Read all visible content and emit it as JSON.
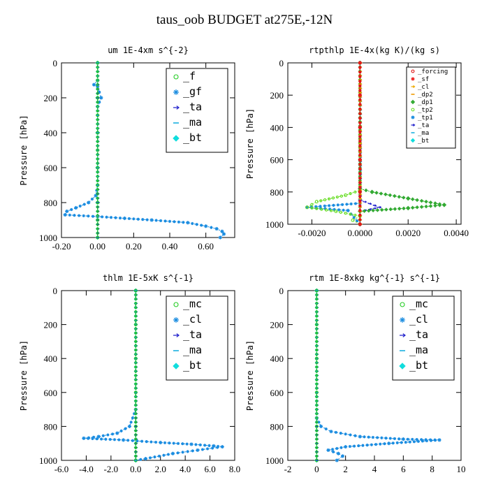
{
  "page": {
    "title": "taus_oob  BUDGET at275E,-12N"
  },
  "chart_data": [
    {
      "id": "um",
      "type": "line",
      "title": "um  1E-4xm s^{-2}",
      "ylabel": "Pressure [hPa]",
      "xlim": [
        -0.2,
        0.76
      ],
      "ylim": [
        1000,
        0
      ],
      "xticks": [
        -0.2,
        0.0,
        0.2,
        0.4,
        0.6
      ],
      "xticklabels": [
        "-0.20",
        "0.00",
        "0.20",
        "0.40",
        "0.60"
      ],
      "yticks": [
        0,
        200,
        400,
        600,
        800,
        1000
      ],
      "yticklabels": [
        "0",
        "200",
        "400",
        "600",
        "800",
        "1000"
      ],
      "legend_position": "top-right",
      "legend_size": "large",
      "series": [
        {
          "name": "_f",
          "color": "#22cc22",
          "marker": "circle",
          "points": [
            [
              0.0,
              0
            ],
            [
              0.0,
              100
            ],
            [
              0.0,
              200
            ],
            [
              0.0,
              300
            ],
            [
              0.0,
              400
            ],
            [
              0.0,
              500
            ],
            [
              0.0,
              600
            ],
            [
              0.0,
              700
            ],
            [
              0.0,
              800
            ],
            [
              0.0,
              900
            ],
            [
              0.0,
              1000
            ]
          ]
        },
        {
          "name": "_gf",
          "color": "#1a8ce0",
          "marker": "star",
          "points": [
            [
              0.0,
              0
            ],
            [
              0.0,
              100
            ],
            [
              -0.02,
              125
            ],
            [
              0.0,
              135
            ],
            [
              0.02,
              200
            ],
            [
              0.0,
              250
            ],
            [
              0.0,
              400
            ],
            [
              0.0,
              600
            ],
            [
              0.0,
              700
            ],
            [
              -0.01,
              760
            ],
            [
              -0.05,
              800
            ],
            [
              -0.12,
              830
            ],
            [
              -0.17,
              850
            ],
            [
              -0.18,
              870
            ],
            [
              0.0,
              880
            ],
            [
              0.15,
              890
            ],
            [
              0.3,
              900
            ],
            [
              0.5,
              915
            ],
            [
              0.6,
              935
            ],
            [
              0.66,
              950
            ],
            [
              0.69,
              965
            ],
            [
              0.7,
              980
            ],
            [
              0.68,
              1000
            ]
          ]
        },
        {
          "name": "_ta",
          "color": "#2222cc",
          "marker": "arrow",
          "points": [
            [
              0.0,
              0
            ],
            [
              0.0,
              200
            ],
            [
              0.0,
              400
            ],
            [
              0.0,
              600
            ],
            [
              0.0,
              800
            ],
            [
              0.0,
              1000
            ]
          ]
        },
        {
          "name": "_ma",
          "color": "#1ab0e0",
          "marker": "dash",
          "points": [
            [
              0.0,
              0
            ],
            [
              0.0,
              200
            ],
            [
              0.0,
              400
            ],
            [
              0.0,
              600
            ],
            [
              0.0,
              800
            ],
            [
              0.0,
              1000
            ]
          ]
        },
        {
          "name": "_bt",
          "color": "#11dddd",
          "marker": "diamond",
          "points": [
            [
              0.0,
              0
            ],
            [
              0.0,
              200
            ],
            [
              0.0,
              400
            ],
            [
              0.0,
              600
            ],
            [
              0.0,
              800
            ],
            [
              0.0,
              1000
            ]
          ]
        }
      ]
    },
    {
      "id": "rtpthlp",
      "type": "line",
      "title": "rtpthlp  1E-4x(kg K)/(kg s)",
      "ylabel": "Pressure [hPa]",
      "xlim": [
        -0.003,
        0.0042
      ],
      "ylim": [
        1000,
        0
      ],
      "xticks": [
        -0.002,
        0.0,
        0.002,
        0.004
      ],
      "xticklabels": [
        "-0.0020",
        "0.0000",
        "0.0020",
        "0.0040"
      ],
      "yticks": [
        0,
        200,
        400,
        600,
        800,
        1000
      ],
      "yticklabels": [
        "0",
        "200",
        "400",
        "600",
        "800",
        "1000"
      ],
      "legend_position": "top-right",
      "legend_size": "small",
      "series": [
        {
          "name": "_forcing",
          "color": "#dd1111",
          "marker": "circle",
          "points": [
            [
              0.0,
              0
            ],
            [
              0.0,
              200
            ],
            [
              0.0,
              400
            ],
            [
              0.0,
              600
            ],
            [
              0.0,
              800
            ],
            [
              0.0,
              1000
            ]
          ]
        },
        {
          "name": "_sf",
          "color": "#ee2222",
          "marker": "star",
          "points": [
            [
              0.0,
              0
            ],
            [
              0.0,
              200
            ],
            [
              0.0,
              400
            ],
            [
              0.0,
              600
            ],
            [
              0.0,
              800
            ],
            [
              0.0,
              1000
            ]
          ]
        },
        {
          "name": "_cl",
          "color": "#eeaa00",
          "marker": "arrow",
          "points": [
            [
              0.0,
              0
            ],
            [
              0.0,
              1000
            ]
          ]
        },
        {
          "name": "_dp2",
          "color": "#ee9900",
          "marker": "dash",
          "points": [
            [
              0.0,
              0
            ],
            [
              0.0,
              1000
            ]
          ]
        },
        {
          "name": "_dp1",
          "color": "#33aa33",
          "marker": "diamond",
          "points": [
            [
              0.0,
              0
            ],
            [
              0.0,
              780
            ],
            [
              0.0005,
              800
            ],
            [
              0.002,
              840
            ],
            [
              0.0035,
              880
            ],
            [
              0.002,
              900
            ],
            [
              0.0,
              920
            ],
            [
              0.0,
              1000
            ]
          ]
        },
        {
          "name": "_tp2",
          "color": "#66dd22",
          "marker": "circle",
          "points": [
            [
              0.0,
              0
            ],
            [
              0.0,
              790
            ],
            [
              -0.0006,
              820
            ],
            [
              -0.0018,
              860
            ],
            [
              -0.0022,
              895
            ],
            [
              -0.001,
              920
            ],
            [
              0.0,
              950
            ],
            [
              -0.0003,
              975
            ],
            [
              0.0,
              1000
            ]
          ]
        },
        {
          "name": "_tp1",
          "color": "#1a8ce0",
          "marker": "star",
          "points": [
            [
              0.0,
              0
            ],
            [
              0.0,
              870
            ],
            [
              -0.0022,
              895
            ],
            [
              -0.0005,
              915
            ],
            [
              0.0,
              1000
            ]
          ]
        },
        {
          "name": "_ta",
          "color": "#2222cc",
          "marker": "arrow",
          "points": [
            [
              0.0,
              0
            ],
            [
              0.0,
              850
            ],
            [
              0.0008,
              895
            ],
            [
              0.0,
              920
            ],
            [
              0.0,
              1000
            ]
          ]
        },
        {
          "name": "_ma",
          "color": "#1ab0e0",
          "marker": "dash",
          "points": [
            [
              0.0,
              0
            ],
            [
              0.0,
              1000
            ]
          ]
        },
        {
          "name": "_bt",
          "color": "#11dddd",
          "marker": "diamond",
          "points": [
            [
              0.0,
              0
            ],
            [
              0.0,
              1000
            ]
          ]
        }
      ]
    },
    {
      "id": "thlm",
      "type": "line",
      "title": "thlm  1E-5xK s^{-1}",
      "ylabel": "Pressure [hPa]",
      "xlim": [
        -6.0,
        8.0
      ],
      "ylim": [
        1000,
        0
      ],
      "xticks": [
        -6,
        -4,
        -2,
        0,
        2,
        4,
        6,
        8
      ],
      "xticklabels": [
        "-6.0",
        "-4.0",
        "-2.0",
        "0.0",
        "2.0",
        "4.0",
        "6.0",
        "8.0"
      ],
      "yticks": [
        0,
        200,
        400,
        600,
        800,
        1000
      ],
      "yticklabels": [
        "0",
        "200",
        "400",
        "600",
        "800",
        "1000"
      ],
      "legend_position": "top-right",
      "legend_size": "large",
      "series": [
        {
          "name": "_mc",
          "color": "#22cc22",
          "marker": "circle",
          "points": [
            [
              0.0,
              0
            ],
            [
              0.0,
              200
            ],
            [
              0.0,
              400
            ],
            [
              0.0,
              600
            ],
            [
              0.0,
              800
            ],
            [
              0.0,
              1000
            ]
          ]
        },
        {
          "name": "_cl",
          "color": "#1a8ce0",
          "marker": "star",
          "points": [
            [
              0.0,
              0
            ],
            [
              0.0,
              700
            ],
            [
              -0.5,
              800
            ],
            [
              -1.5,
              840
            ],
            [
              -3.0,
              860
            ],
            [
              -4.2,
              870
            ],
            [
              -1.0,
              880
            ],
            [
              2.0,
              895
            ],
            [
              4.5,
              905
            ],
            [
              6.3,
              915
            ],
            [
              7.0,
              920
            ],
            [
              5.0,
              940
            ],
            [
              3.0,
              960
            ],
            [
              0.8,
              990
            ],
            [
              0.0,
              1000
            ]
          ]
        },
        {
          "name": "_ta",
          "color": "#2222cc",
          "marker": "arrow",
          "points": [
            [
              0.0,
              0
            ],
            [
              0.0,
              1000
            ]
          ]
        },
        {
          "name": "_ma",
          "color": "#1ab0e0",
          "marker": "dash",
          "points": [
            [
              0.0,
              0
            ],
            [
              0.0,
              1000
            ]
          ]
        },
        {
          "name": "_bt",
          "color": "#11dddd",
          "marker": "diamond",
          "points": [
            [
              0.0,
              0
            ],
            [
              0.0,
              1000
            ]
          ]
        }
      ]
    },
    {
      "id": "rtm",
      "type": "line",
      "title": "rtm  1E-8xkg kg^{-1} s^{-1}",
      "ylabel": "Pressure [hPa]",
      "xlim": [
        -2,
        10
      ],
      "ylim": [
        1000,
        0
      ],
      "xticks": [
        -2,
        0,
        2,
        4,
        6,
        8,
        10
      ],
      "xticklabels": [
        "-2",
        "0",
        "2",
        "4",
        "6",
        "8",
        "10"
      ],
      "yticks": [
        0,
        200,
        400,
        600,
        800,
        1000
      ],
      "yticklabels": [
        "0",
        "200",
        "400",
        "600",
        "800",
        "1000"
      ],
      "legend_position": "top-right",
      "legend_size": "large",
      "series": [
        {
          "name": "_mc",
          "color": "#22cc22",
          "marker": "circle",
          "points": [
            [
              0.0,
              0
            ],
            [
              0.0,
              200
            ],
            [
              0.0,
              400
            ],
            [
              0.0,
              600
            ],
            [
              0.0,
              800
            ],
            [
              0.0,
              1000
            ]
          ]
        },
        {
          "name": "_cl",
          "color": "#1a8ce0",
          "marker": "star",
          "points": [
            [
              0.0,
              0
            ],
            [
              0.0,
              750
            ],
            [
              0.3,
              800
            ],
            [
              1.0,
              830
            ],
            [
              3.0,
              860
            ],
            [
              6.0,
              875
            ],
            [
              8.5,
              880
            ],
            [
              5.0,
              900
            ],
            [
              2.0,
              920
            ],
            [
              0.8,
              940
            ],
            [
              1.5,
              960
            ],
            [
              1.8,
              975
            ],
            [
              1.4,
              1000
            ]
          ]
        },
        {
          "name": "_ta",
          "color": "#2222cc",
          "marker": "arrow",
          "points": [
            [
              0.0,
              0
            ],
            [
              0.0,
              1000
            ]
          ]
        },
        {
          "name": "_ma",
          "color": "#1ab0e0",
          "marker": "dash",
          "points": [
            [
              0.0,
              0
            ],
            [
              0.0,
              1000
            ]
          ]
        },
        {
          "name": "_bt",
          "color": "#11dddd",
          "marker": "diamond",
          "points": [
            [
              0.0,
              0
            ],
            [
              0.0,
              1000
            ]
          ]
        }
      ]
    }
  ]
}
